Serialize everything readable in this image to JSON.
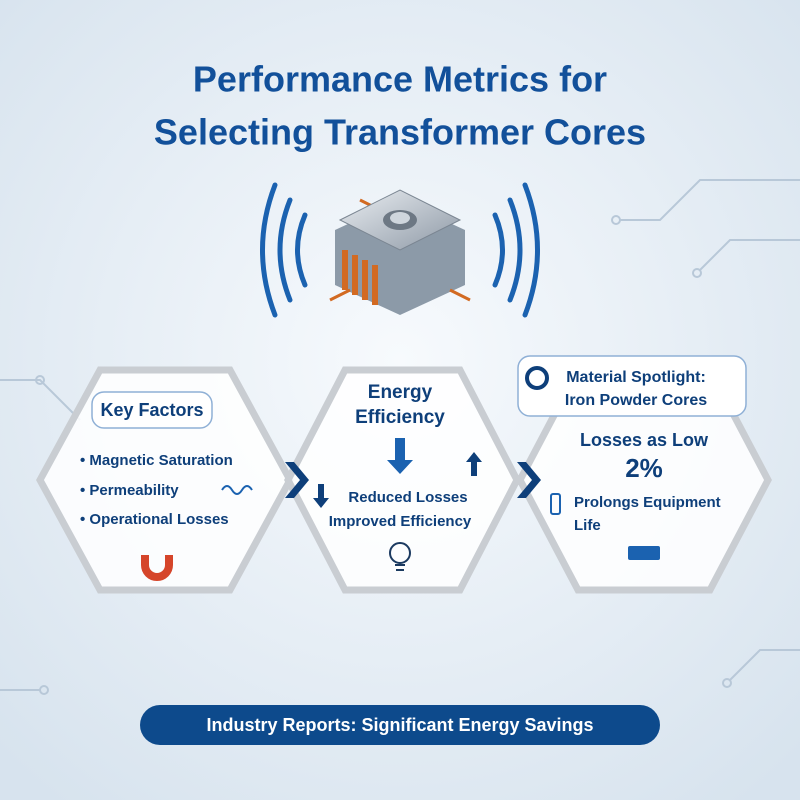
{
  "header": {
    "title_lines": [
      "Performance Metrics for",
      "Selecting Transformer Cores"
    ]
  },
  "panels": [
    {
      "heading": "Key Factors",
      "items": [
        "Magnetic Saturation",
        "Permeability",
        "Operational Losses"
      ]
    },
    {
      "heading_lines": [
        "Energy",
        "Efficiency"
      ],
      "lines": [
        "Reduced Losses",
        "Improved Efficiency"
      ]
    },
    {
      "badge_lines": [
        "Material Spotlight:",
        "Iron Powder Cores"
      ],
      "lines": [
        "Losses as Low",
        "2%"
      ],
      "note_lines": [
        "Prolongs Equipment",
        "Life"
      ]
    }
  ],
  "footer": {
    "text": "Industry Reports: Significant Energy Savings"
  }
}
